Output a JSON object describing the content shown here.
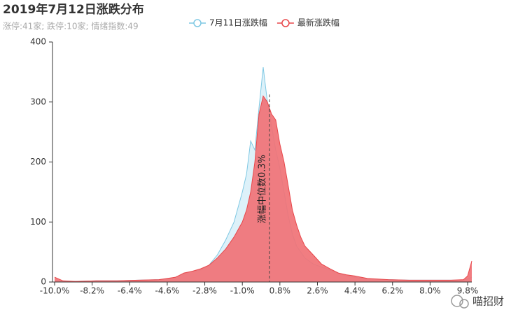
{
  "chart_data": {
    "type": "area",
    "title": "2019年7月12日涨跌分布",
    "subtitle": "涨停:41家; 跌停:10家; 情绪指数:49",
    "watermark": "喵招财",
    "x": [
      -10,
      -9.6,
      -9,
      -8,
      -7,
      -6,
      -5,
      -4.6,
      -4.2,
      -3.8,
      -3.4,
      -3,
      -2.6,
      -2.2,
      -1.8,
      -1.4,
      -1,
      -0.8,
      -0.6,
      -0.4,
      -0.2,
      0,
      0.2,
      0.4,
      0.6,
      0.8,
      1,
      1.2,
      1.4,
      1.6,
      1.8,
      2,
      2.4,
      2.8,
      3.2,
      3.6,
      4,
      4.4,
      5,
      6,
      7,
      8,
      9,
      9.6,
      9.8,
      10
    ],
    "series": [
      {
        "name": "7月11日涨跌幅",
        "color": "#7ec8e3",
        "fill": "#d9f0f8",
        "values": [
          2,
          1,
          1,
          2,
          2,
          3,
          4,
          5,
          8,
          14,
          18,
          20,
          28,
          45,
          70,
          100,
          150,
          180,
          235,
          220,
          290,
          358,
          300,
          260,
          220,
          190,
          150,
          110,
          80,
          60,
          50,
          40,
          30,
          25,
          20,
          15,
          10,
          8,
          5,
          4,
          3,
          3,
          3,
          3,
          5,
          8
        ]
      },
      {
        "name": "最新涨跌幅",
        "color": "#e8474a",
        "fill": "#f07276",
        "values": [
          8,
          2,
          1,
          2,
          2,
          3,
          4,
          6,
          8,
          15,
          18,
          22,
          28,
          40,
          55,
          75,
          100,
          120,
          150,
          200,
          280,
          310,
          300,
          280,
          270,
          230,
          200,
          160,
          120,
          95,
          75,
          60,
          45,
          30,
          22,
          15,
          12,
          10,
          6,
          4,
          3,
          3,
          3,
          4,
          10,
          35
        ]
      }
    ],
    "median": {
      "value": 0.3,
      "label": "涨幅中位数0.3%"
    },
    "xlim": [
      -10,
      10
    ],
    "xticks": [
      {
        "value": -10,
        "label": "-10.0%"
      },
      {
        "value": -8.2,
        "label": "-8.2%"
      },
      {
        "value": -6.4,
        "label": "-6.4%"
      },
      {
        "value": -4.6,
        "label": "-4.6%"
      },
      {
        "value": -2.8,
        "label": "-2.8%"
      },
      {
        "value": -1,
        "label": "-1.0%"
      },
      {
        "value": 0.8,
        "label": "0.8%"
      },
      {
        "value": 2.6,
        "label": "2.6%"
      },
      {
        "value": 4.4,
        "label": "4.4%"
      },
      {
        "value": 6.2,
        "label": "6.2%"
      },
      {
        "value": 8,
        "label": "8.0%"
      },
      {
        "value": 9.8,
        "label": "9.8%"
      }
    ],
    "ylim": [
      0,
      400
    ],
    "yticks": [
      0,
      100,
      200,
      300,
      400
    ],
    "grid": false
  }
}
